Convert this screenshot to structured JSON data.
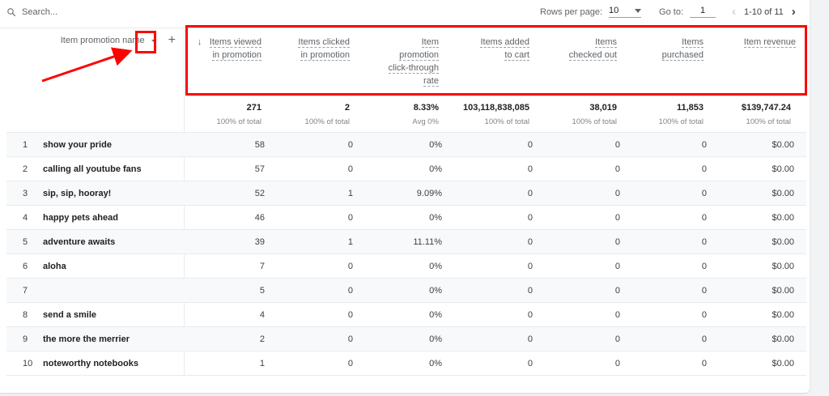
{
  "toolbar": {
    "search_placeholder": "Search...",
    "rows_per_page_label": "Rows per page:",
    "rows_per_page_value": "10",
    "goto_label": "Go to:",
    "goto_value": "1",
    "range_text": "1-10 of 11",
    "prev_glyph": "‹",
    "next_glyph": "›"
  },
  "table": {
    "dimension_header": "Item promotion name",
    "add_glyph": "+",
    "sort_glyph": "↓",
    "columns": [
      {
        "lines": [
          "Items viewed",
          "in promotion"
        ],
        "sorted": true
      },
      {
        "lines": [
          "Items clicked",
          "in promotion"
        ]
      },
      {
        "lines": [
          "Item",
          "promotion",
          "click-through",
          "rate"
        ]
      },
      {
        "lines": [
          "Items added",
          "to cart"
        ]
      },
      {
        "lines": [
          "Items",
          "checked out"
        ]
      },
      {
        "lines": [
          "Items",
          "purchased"
        ]
      },
      {
        "lines": [
          "Item revenue"
        ]
      }
    ],
    "totals": [
      {
        "value": "271",
        "sub": "100% of total"
      },
      {
        "value": "2",
        "sub": "100% of total"
      },
      {
        "value": "8.33%",
        "sub": "Avg 0%"
      },
      {
        "value": "103,118,838,085",
        "sub": "100% of total"
      },
      {
        "value": "38,019",
        "sub": "100% of total"
      },
      {
        "value": "11,853",
        "sub": "100% of total"
      },
      {
        "value": "$139,747.24",
        "sub": "100% of total"
      }
    ],
    "rows": [
      {
        "idx": "1",
        "name": "show your pride",
        "values": [
          "58",
          "0",
          "0%",
          "0",
          "0",
          "0",
          "$0.00"
        ]
      },
      {
        "idx": "2",
        "name": "calling all youtube fans",
        "values": [
          "57",
          "0",
          "0%",
          "0",
          "0",
          "0",
          "$0.00"
        ]
      },
      {
        "idx": "3",
        "name": "sip, sip, hooray!",
        "values": [
          "52",
          "1",
          "9.09%",
          "0",
          "0",
          "0",
          "$0.00"
        ]
      },
      {
        "idx": "4",
        "name": "happy pets ahead",
        "values": [
          "46",
          "0",
          "0%",
          "0",
          "0",
          "0",
          "$0.00"
        ]
      },
      {
        "idx": "5",
        "name": "adventure awaits",
        "values": [
          "39",
          "1",
          "11.11%",
          "0",
          "0",
          "0",
          "$0.00"
        ]
      },
      {
        "idx": "6",
        "name": "aloha",
        "values": [
          "7",
          "0",
          "0%",
          "0",
          "0",
          "0",
          "$0.00"
        ]
      },
      {
        "idx": "7",
        "name": "",
        "values": [
          "5",
          "0",
          "0%",
          "0",
          "0",
          "0",
          "$0.00"
        ]
      },
      {
        "idx": "8",
        "name": "send a smile",
        "values": [
          "4",
          "0",
          "0%",
          "0",
          "0",
          "0",
          "$0.00"
        ]
      },
      {
        "idx": "9",
        "name": "the more the merrier",
        "values": [
          "2",
          "0",
          "0%",
          "0",
          "0",
          "0",
          "$0.00"
        ]
      },
      {
        "idx": "10",
        "name": "noteworthy notebooks",
        "values": [
          "1",
          "0",
          "0%",
          "0",
          "0",
          "0",
          "$0.00"
        ]
      }
    ]
  },
  "annotations": {
    "color": "#ff0000"
  }
}
